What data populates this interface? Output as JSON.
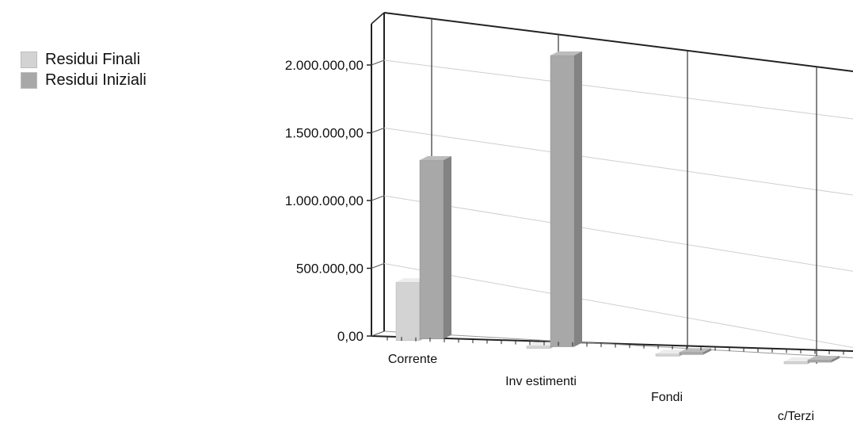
{
  "chart_data": {
    "type": "bar",
    "categories": [
      "Corrente",
      "Inv estimenti",
      "Fondi",
      "c/Terzi"
    ],
    "series": [
      {
        "name": "Residui Finali",
        "values": [
          430000,
          0,
          0,
          0
        ],
        "color": "#d3d3d3"
      },
      {
        "name": "Residui Iniziali",
        "values": [
          1320000,
          2150000,
          15000,
          10000
        ],
        "color": "#a8a8a8"
      }
    ],
    "y_ticks": [
      "0,00",
      "500.000,00",
      "1.000.000,00",
      "1.500.000,00",
      "2.000.000,00"
    ],
    "ylim": [
      0,
      2300000
    ],
    "grid": true,
    "legend_position": "top-left",
    "style": "3d"
  }
}
